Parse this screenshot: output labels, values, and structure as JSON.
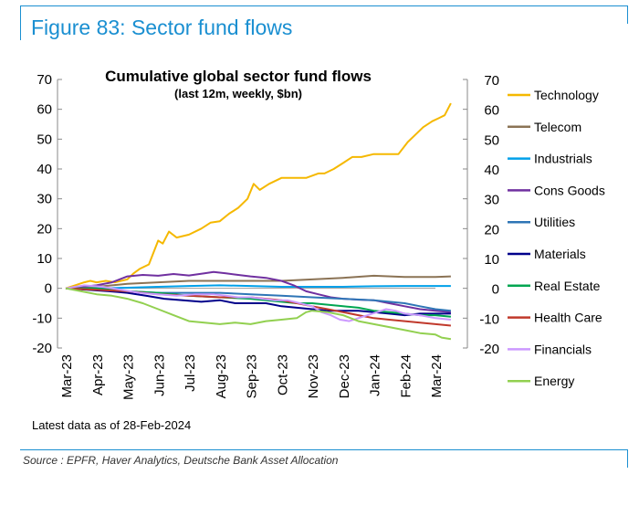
{
  "figure_title": "Figure 83: Sector fund flows",
  "source": "Source : EPFR, Haver Analytics, Deutsche Bank Asset Allocation",
  "colors": {
    "accent": "#1a8fd1"
  },
  "chart_data": {
    "type": "line",
    "title": "Cumulative global sector fund flows",
    "subtitle": "(last 12m, weekly, $bn)",
    "note": "Latest data as of 28-Feb-2024",
    "ylim": [
      -20,
      70
    ],
    "yticks": [
      -20,
      -10,
      0,
      10,
      20,
      30,
      40,
      50,
      60,
      70
    ],
    "ytick_labels_left": [
      "-20",
      "-10",
      "0",
      "10",
      "20",
      "30",
      "40",
      "50",
      "60",
      "70"
    ],
    "ytick_labels_right": [
      "-20",
      "-10",
      "0",
      "10",
      "20",
      "30",
      "40",
      "50",
      "60",
      "70"
    ],
    "x_labels": [
      "Mar-23",
      "Apr-23",
      "May-23",
      "Jun-23",
      "Jul-23",
      "Aug-23",
      "Sep-23",
      "Oct-23",
      "Nov-23",
      "Dec-23",
      "Jan-24",
      "Feb-24",
      "Mar-24"
    ],
    "grid": false,
    "legend_position": "right",
    "series": [
      {
        "name": "Technology",
        "color": "#f5b800",
        "points": [
          [
            0,
            0
          ],
          [
            0.3,
            1
          ],
          [
            0.6,
            2
          ],
          [
            0.8,
            2.5
          ],
          [
            1,
            2
          ],
          [
            1.3,
            2.5
          ],
          [
            1.6,
            2
          ],
          [
            2,
            3
          ],
          [
            2.2,
            5
          ],
          [
            2.4,
            6.5
          ],
          [
            2.7,
            8
          ],
          [
            3,
            16
          ],
          [
            3.15,
            15
          ],
          [
            3.35,
            19
          ],
          [
            3.6,
            17
          ],
          [
            4,
            18
          ],
          [
            4.4,
            20
          ],
          [
            4.7,
            22
          ],
          [
            5,
            22.5
          ],
          [
            5.3,
            25
          ],
          [
            5.6,
            27
          ],
          [
            5.9,
            30
          ],
          [
            6.1,
            35
          ],
          [
            6.3,
            33
          ],
          [
            6.6,
            35
          ],
          [
            7,
            37
          ],
          [
            7.5,
            37
          ],
          [
            7.8,
            37
          ],
          [
            8.2,
            38.5
          ],
          [
            8.4,
            38.5
          ],
          [
            8.7,
            40
          ],
          [
            9,
            42
          ],
          [
            9.3,
            44
          ],
          [
            9.6,
            44
          ],
          [
            10,
            45
          ],
          [
            10.4,
            45
          ],
          [
            10.8,
            45
          ],
          [
            11.1,
            49
          ],
          [
            11.4,
            52
          ],
          [
            11.6,
            54
          ],
          [
            11.9,
            56
          ],
          [
            12.1,
            57
          ],
          [
            12.3,
            58
          ],
          [
            12.5,
            62
          ]
        ]
      },
      {
        "name": "Telecom",
        "color": "#8b7355",
        "points": [
          [
            0,
            0
          ],
          [
            1,
            0.5
          ],
          [
            2,
            1.5
          ],
          [
            3,
            2
          ],
          [
            4,
            2.5
          ],
          [
            5,
            2.5
          ],
          [
            6,
            2.5
          ],
          [
            7,
            2.5
          ],
          [
            8,
            3
          ],
          [
            9,
            3.5
          ],
          [
            10,
            4.2
          ],
          [
            11,
            3.8
          ],
          [
            12,
            3.8
          ],
          [
            12.5,
            4
          ]
        ]
      },
      {
        "name": "Industrials",
        "color": "#00a0e9",
        "points": [
          [
            0,
            0
          ],
          [
            1,
            0
          ],
          [
            2,
            0.2
          ],
          [
            3,
            0.5
          ],
          [
            4,
            0.8
          ],
          [
            5,
            1
          ],
          [
            6,
            0.8
          ],
          [
            7,
            0.5
          ],
          [
            8,
            0.5
          ],
          [
            9,
            0.5
          ],
          [
            10,
            0.7
          ],
          [
            11,
            0.8
          ],
          [
            12,
            0.8
          ],
          [
            12.5,
            0.8
          ]
        ]
      },
      {
        "name": "Cons Goods",
        "color": "#7030a0",
        "points": [
          [
            0,
            0
          ],
          [
            1,
            1
          ],
          [
            1.5,
            2
          ],
          [
            2,
            4
          ],
          [
            2.5,
            4.5
          ],
          [
            3,
            4.2
          ],
          [
            3.5,
            4.8
          ],
          [
            4,
            4.3
          ],
          [
            4.5,
            5
          ],
          [
            4.8,
            5.5
          ],
          [
            5.2,
            5
          ],
          [
            5.6,
            4.5
          ],
          [
            6,
            4
          ],
          [
            6.5,
            3.5
          ],
          [
            7,
            2.5
          ],
          [
            7.4,
            1
          ],
          [
            7.8,
            -1
          ],
          [
            8.2,
            -2
          ],
          [
            8.6,
            -3
          ],
          [
            9,
            -3.5
          ],
          [
            9.5,
            -3.8
          ],
          [
            10,
            -4
          ],
          [
            10.5,
            -5
          ],
          [
            11,
            -6
          ],
          [
            11.5,
            -7
          ],
          [
            12,
            -7.5
          ],
          [
            12.5,
            -8
          ]
        ]
      },
      {
        "name": "Utilities",
        "color": "#2e75b6",
        "points": [
          [
            0,
            0
          ],
          [
            1,
            -0.5
          ],
          [
            2,
            -1
          ],
          [
            3,
            -1.5
          ],
          [
            4,
            -1.5
          ],
          [
            5,
            -1.5
          ],
          [
            6,
            -2
          ],
          [
            7,
            -2.5
          ],
          [
            8,
            -3
          ],
          [
            9,
            -3.5
          ],
          [
            10,
            -4
          ],
          [
            11,
            -5
          ],
          [
            11.5,
            -6
          ],
          [
            12,
            -7
          ],
          [
            12.5,
            -7.5
          ]
        ]
      },
      {
        "name": "Materials",
        "color": "#00008b",
        "points": [
          [
            0,
            0
          ],
          [
            0.7,
            -0.5
          ],
          [
            1.4,
            -1
          ],
          [
            2,
            -1.5
          ],
          [
            2.6,
            -2.5
          ],
          [
            3.2,
            -3.5
          ],
          [
            3.8,
            -4
          ],
          [
            4.4,
            -4.5
          ],
          [
            5,
            -4
          ],
          [
            5.5,
            -5
          ],
          [
            6,
            -5
          ],
          [
            6.5,
            -5
          ],
          [
            7,
            -6
          ],
          [
            7.5,
            -6.5
          ],
          [
            8,
            -7
          ],
          [
            8.5,
            -7.5
          ],
          [
            9,
            -7.5
          ],
          [
            9.5,
            -7.5
          ],
          [
            10,
            -8
          ],
          [
            10.5,
            -8.5
          ],
          [
            11,
            -9
          ],
          [
            11.5,
            -8.5
          ],
          [
            12,
            -8.5
          ],
          [
            12.5,
            -8.5
          ]
        ]
      },
      {
        "name": "Real Estate",
        "color": "#00a651",
        "points": [
          [
            0,
            0
          ],
          [
            1,
            0
          ],
          [
            2,
            -1
          ],
          [
            3,
            -1.5
          ],
          [
            4,
            -2.5
          ],
          [
            5,
            -3
          ],
          [
            6,
            -3.5
          ],
          [
            6.5,
            -4
          ],
          [
            7,
            -4.5
          ],
          [
            7.5,
            -5
          ],
          [
            8,
            -5
          ],
          [
            8.5,
            -5.5
          ],
          [
            9,
            -6
          ],
          [
            9.5,
            -6.5
          ],
          [
            10,
            -7.5
          ],
          [
            10.5,
            -8
          ],
          [
            11,
            -8.5
          ],
          [
            11.5,
            -9
          ],
          [
            12,
            -9
          ],
          [
            12.5,
            -9.5
          ]
        ]
      },
      {
        "name": "Health Care",
        "color": "#c0392b",
        "points": [
          [
            0,
            0
          ],
          [
            1,
            -0.5
          ],
          [
            2,
            -1
          ],
          [
            3,
            -2
          ],
          [
            4,
            -2.5
          ],
          [
            5,
            -3
          ],
          [
            6,
            -3
          ],
          [
            7,
            -4
          ],
          [
            7.5,
            -5
          ],
          [
            8,
            -6
          ],
          [
            8.5,
            -7
          ],
          [
            9,
            -8
          ],
          [
            9.5,
            -9
          ],
          [
            10,
            -10
          ],
          [
            10.5,
            -10.5
          ],
          [
            11,
            -11
          ],
          [
            11.5,
            -11.5
          ],
          [
            12,
            -12
          ],
          [
            12.5,
            -12.5
          ]
        ]
      },
      {
        "name": "Financials",
        "color": "#cc99ff",
        "points": [
          [
            0,
            0
          ],
          [
            0.6,
            1
          ],
          [
            1.2,
            0.5
          ],
          [
            1.8,
            -0.5
          ],
          [
            2.4,
            -1.5
          ],
          [
            3,
            -2
          ],
          [
            3.6,
            -2.5
          ],
          [
            4.2,
            -2
          ],
          [
            4.8,
            -2
          ],
          [
            5.2,
            -2.5
          ],
          [
            5.6,
            -3
          ],
          [
            6,
            -3
          ],
          [
            6.4,
            -3.5
          ],
          [
            6.8,
            -4
          ],
          [
            7.2,
            -4
          ],
          [
            7.6,
            -5
          ],
          [
            8,
            -6
          ],
          [
            8.3,
            -8
          ],
          [
            8.6,
            -9
          ],
          [
            8.9,
            -10.5
          ],
          [
            9.2,
            -11
          ],
          [
            9.5,
            -10
          ],
          [
            9.8,
            -9
          ],
          [
            10.1,
            -8
          ],
          [
            10.4,
            -7
          ],
          [
            10.7,
            -7.5
          ],
          [
            11,
            -8.5
          ],
          [
            11.5,
            -9
          ],
          [
            12,
            -10
          ],
          [
            12.5,
            -10.5
          ]
        ]
      },
      {
        "name": "Energy",
        "color": "#92d050",
        "points": [
          [
            0,
            0
          ],
          [
            0.5,
            -1
          ],
          [
            1,
            -2
          ],
          [
            1.5,
            -2.5
          ],
          [
            2,
            -3.5
          ],
          [
            2.5,
            -5
          ],
          [
            3,
            -7
          ],
          [
            3.5,
            -9
          ],
          [
            4,
            -11
          ],
          [
            4.5,
            -11.5
          ],
          [
            5,
            -12
          ],
          [
            5.5,
            -11.5
          ],
          [
            6,
            -12
          ],
          [
            6.5,
            -11
          ],
          [
            7,
            -10.5
          ],
          [
            7.5,
            -10
          ],
          [
            7.8,
            -8
          ],
          [
            8,
            -7.5
          ],
          [
            8.5,
            -8
          ],
          [
            9,
            -9
          ],
          [
            9.5,
            -11
          ],
          [
            10,
            -12
          ],
          [
            10.5,
            -13
          ],
          [
            11,
            -14
          ],
          [
            11.5,
            -15
          ],
          [
            12,
            -15.5
          ],
          [
            12.2,
            -16.5
          ],
          [
            12.5,
            -17
          ]
        ]
      }
    ]
  }
}
